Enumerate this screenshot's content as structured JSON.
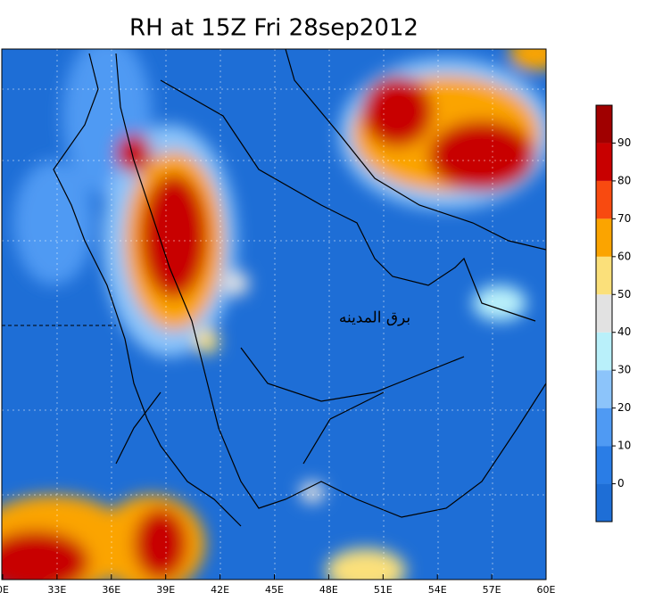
{
  "title": "RH at 15Z Fri 28sep2012",
  "x_axis": {
    "labels": [
      "0E",
      "33E",
      "36E",
      "39E",
      "42E",
      "45E",
      "48E",
      "51E",
      "54E",
      "57E",
      "60E"
    ]
  },
  "annotation": "برق المدينه",
  "colorbar": {
    "ticks": [
      0,
      10,
      20,
      30,
      40,
      50,
      60,
      70,
      80,
      90
    ],
    "colors": [
      "#1e6ed6",
      "#2a7de6",
      "#4f9af3",
      "#8cc4fa",
      "#b9f0fa",
      "#e2e2e2",
      "#fbe07a",
      "#fba400",
      "#f84a10",
      "#c80000",
      "#a00000"
    ]
  }
}
